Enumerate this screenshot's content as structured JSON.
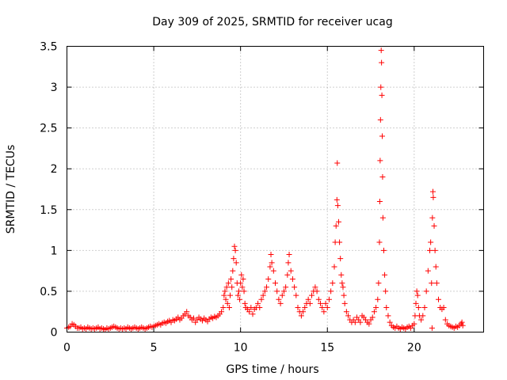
{
  "chart_data": {
    "type": "scatter",
    "title": "Day 309 of 2025, SRMTID for receiver ucag",
    "xlabel": "GPS time / hours",
    "ylabel": "SRMTID / TECUs",
    "xlim": [
      0,
      24
    ],
    "ylim": [
      0,
      3.5
    ],
    "grid": true,
    "marker": "plus",
    "x_ticks": [
      0,
      5,
      10,
      15,
      20
    ],
    "x_tick_labels": [
      "0",
      "5",
      "10",
      "15",
      "20"
    ],
    "y_ticks": [
      0,
      0.5,
      1,
      1.5,
      2,
      2.5,
      3,
      3.5
    ],
    "y_tick_labels": [
      "0",
      "0.5",
      "1",
      "1.5",
      "2",
      "2.5",
      "3",
      "3.5"
    ],
    "series": [
      {
        "name": "SRMTID",
        "color": "#ff0000",
        "points": [
          [
            0.0,
            0.05
          ],
          [
            0.1,
            0.06
          ],
          [
            0.2,
            0.07
          ],
          [
            0.3,
            0.1
          ],
          [
            0.4,
            0.09
          ],
          [
            0.5,
            0.07
          ],
          [
            0.6,
            0.05
          ],
          [
            0.7,
            0.05
          ],
          [
            0.8,
            0.06
          ],
          [
            0.9,
            0.04
          ],
          [
            1.0,
            0.05
          ],
          [
            1.1,
            0.04
          ],
          [
            1.2,
            0.06
          ],
          [
            1.3,
            0.05
          ],
          [
            1.4,
            0.04
          ],
          [
            1.5,
            0.05
          ],
          [
            1.6,
            0.04
          ],
          [
            1.7,
            0.05
          ],
          [
            1.8,
            0.06
          ],
          [
            1.9,
            0.04
          ],
          [
            2.0,
            0.05
          ],
          [
            2.1,
            0.04
          ],
          [
            2.2,
            0.03
          ],
          [
            2.3,
            0.05
          ],
          [
            2.4,
            0.04
          ],
          [
            2.5,
            0.05
          ],
          [
            2.6,
            0.06
          ],
          [
            2.7,
            0.07
          ],
          [
            2.8,
            0.06
          ],
          [
            2.9,
            0.05
          ],
          [
            3.0,
            0.04
          ],
          [
            3.1,
            0.05
          ],
          [
            3.2,
            0.04
          ],
          [
            3.3,
            0.05
          ],
          [
            3.4,
            0.04
          ],
          [
            3.5,
            0.06
          ],
          [
            3.6,
            0.05
          ],
          [
            3.7,
            0.04
          ],
          [
            3.8,
            0.05
          ],
          [
            3.9,
            0.06
          ],
          [
            4.0,
            0.05
          ],
          [
            4.1,
            0.04
          ],
          [
            4.2,
            0.05
          ],
          [
            4.3,
            0.06
          ],
          [
            4.4,
            0.05
          ],
          [
            4.5,
            0.04
          ],
          [
            4.6,
            0.05
          ],
          [
            4.7,
            0.06
          ],
          [
            4.8,
            0.07
          ],
          [
            4.9,
            0.06
          ],
          [
            5.0,
            0.07
          ],
          [
            5.1,
            0.08
          ],
          [
            5.2,
            0.09
          ],
          [
            5.3,
            0.1
          ],
          [
            5.4,
            0.09
          ],
          [
            5.5,
            0.11
          ],
          [
            5.6,
            0.12
          ],
          [
            5.7,
            0.11
          ],
          [
            5.8,
            0.13
          ],
          [
            5.9,
            0.14
          ],
          [
            6.0,
            0.12
          ],
          [
            6.1,
            0.15
          ],
          [
            6.2,
            0.14
          ],
          [
            6.3,
            0.16
          ],
          [
            6.4,
            0.18
          ],
          [
            6.5,
            0.15
          ],
          [
            6.6,
            0.17
          ],
          [
            6.7,
            0.2
          ],
          [
            6.8,
            0.22
          ],
          [
            6.9,
            0.25
          ],
          [
            7.0,
            0.2
          ],
          [
            7.1,
            0.18
          ],
          [
            7.2,
            0.15
          ],
          [
            7.3,
            0.17
          ],
          [
            7.4,
            0.12
          ],
          [
            7.5,
            0.15
          ],
          [
            7.6,
            0.18
          ],
          [
            7.7,
            0.16
          ],
          [
            7.8,
            0.14
          ],
          [
            7.9,
            0.17
          ],
          [
            8.0,
            0.15
          ],
          [
            8.1,
            0.13
          ],
          [
            8.2,
            0.16
          ],
          [
            8.3,
            0.18
          ],
          [
            8.4,
            0.17
          ],
          [
            8.5,
            0.19
          ],
          [
            8.6,
            0.18
          ],
          [
            8.7,
            0.2
          ],
          [
            8.8,
            0.22
          ],
          [
            8.9,
            0.25
          ],
          [
            9.0,
            0.3
          ],
          [
            9.05,
            0.45
          ],
          [
            9.1,
            0.5
          ],
          [
            9.15,
            0.4
          ],
          [
            9.2,
            0.55
          ],
          [
            9.25,
            0.35
          ],
          [
            9.3,
            0.6
          ],
          [
            9.35,
            0.3
          ],
          [
            9.4,
            0.45
          ],
          [
            9.45,
            0.65
          ],
          [
            9.5,
            0.55
          ],
          [
            9.55,
            0.75
          ],
          [
            9.6,
            0.9
          ],
          [
            9.65,
            1.05
          ],
          [
            9.7,
            1.0
          ],
          [
            9.75,
            0.85
          ],
          [
            9.8,
            0.6
          ],
          [
            9.85,
            0.45
          ],
          [
            9.9,
            0.5
          ],
          [
            9.95,
            0.4
          ],
          [
            10.0,
            0.6
          ],
          [
            10.05,
            0.7
          ],
          [
            10.1,
            0.55
          ],
          [
            10.15,
            0.65
          ],
          [
            10.2,
            0.5
          ],
          [
            10.25,
            0.35
          ],
          [
            10.3,
            0.3
          ],
          [
            10.4,
            0.28
          ],
          [
            10.5,
            0.25
          ],
          [
            10.6,
            0.3
          ],
          [
            10.7,
            0.22
          ],
          [
            10.8,
            0.28
          ],
          [
            10.9,
            0.3
          ],
          [
            11.0,
            0.35
          ],
          [
            11.1,
            0.3
          ],
          [
            11.2,
            0.4
          ],
          [
            11.3,
            0.45
          ],
          [
            11.4,
            0.5
          ],
          [
            11.5,
            0.55
          ],
          [
            11.6,
            0.65
          ],
          [
            11.7,
            0.8
          ],
          [
            11.75,
            0.95
          ],
          [
            11.8,
            0.85
          ],
          [
            11.9,
            0.75
          ],
          [
            12.0,
            0.6
          ],
          [
            12.1,
            0.5
          ],
          [
            12.2,
            0.4
          ],
          [
            12.3,
            0.35
          ],
          [
            12.4,
            0.45
          ],
          [
            12.5,
            0.5
          ],
          [
            12.6,
            0.55
          ],
          [
            12.7,
            0.7
          ],
          [
            12.75,
            0.85
          ],
          [
            12.8,
            0.95
          ],
          [
            12.9,
            0.75
          ],
          [
            13.0,
            0.65
          ],
          [
            13.1,
            0.55
          ],
          [
            13.2,
            0.45
          ],
          [
            13.3,
            0.3
          ],
          [
            13.4,
            0.25
          ],
          [
            13.5,
            0.2
          ],
          [
            13.6,
            0.25
          ],
          [
            13.7,
            0.3
          ],
          [
            13.8,
            0.35
          ],
          [
            13.9,
            0.4
          ],
          [
            14.0,
            0.35
          ],
          [
            14.1,
            0.45
          ],
          [
            14.2,
            0.5
          ],
          [
            14.3,
            0.55
          ],
          [
            14.4,
            0.5
          ],
          [
            14.5,
            0.4
          ],
          [
            14.6,
            0.35
          ],
          [
            14.7,
            0.3
          ],
          [
            14.8,
            0.25
          ],
          [
            14.9,
            0.35
          ],
          [
            15.0,
            0.3
          ],
          [
            15.1,
            0.4
          ],
          [
            15.2,
            0.5
          ],
          [
            15.3,
            0.6
          ],
          [
            15.4,
            0.8
          ],
          [
            15.45,
            1.1
          ],
          [
            15.5,
            1.3
          ],
          [
            15.55,
            1.62
          ],
          [
            15.57,
            2.07
          ],
          [
            15.6,
            1.55
          ],
          [
            15.65,
            1.35
          ],
          [
            15.7,
            1.1
          ],
          [
            15.75,
            0.9
          ],
          [
            15.8,
            0.7
          ],
          [
            15.85,
            0.6
          ],
          [
            15.9,
            0.55
          ],
          [
            15.95,
            0.45
          ],
          [
            16.0,
            0.35
          ],
          [
            16.1,
            0.25
          ],
          [
            16.2,
            0.2
          ],
          [
            16.3,
            0.15
          ],
          [
            16.4,
            0.12
          ],
          [
            16.5,
            0.15
          ],
          [
            16.6,
            0.12
          ],
          [
            16.7,
            0.18
          ],
          [
            16.8,
            0.15
          ],
          [
            16.9,
            0.12
          ],
          [
            17.0,
            0.2
          ],
          [
            17.1,
            0.18
          ],
          [
            17.2,
            0.15
          ],
          [
            17.3,
            0.12
          ],
          [
            17.4,
            0.1
          ],
          [
            17.5,
            0.15
          ],
          [
            17.6,
            0.18
          ],
          [
            17.7,
            0.25
          ],
          [
            17.8,
            0.3
          ],
          [
            17.9,
            0.4
          ],
          [
            17.95,
            0.6
          ],
          [
            18.0,
            1.1
          ],
          [
            18.02,
            1.6
          ],
          [
            18.04,
            2.1
          ],
          [
            18.06,
            2.6
          ],
          [
            18.08,
            3.0
          ],
          [
            18.1,
            3.45
          ],
          [
            18.12,
            3.3
          ],
          [
            18.14,
            2.9
          ],
          [
            18.16,
            2.4
          ],
          [
            18.18,
            1.9
          ],
          [
            18.2,
            1.4
          ],
          [
            18.25,
            1.0
          ],
          [
            18.3,
            0.7
          ],
          [
            18.35,
            0.5
          ],
          [
            18.4,
            0.3
          ],
          [
            18.5,
            0.2
          ],
          [
            18.6,
            0.12
          ],
          [
            18.7,
            0.08
          ],
          [
            18.8,
            0.06
          ],
          [
            18.9,
            0.05
          ],
          [
            19.0,
            0.07
          ],
          [
            19.1,
            0.05
          ],
          [
            19.2,
            0.04
          ],
          [
            19.3,
            0.06
          ],
          [
            19.4,
            0.05
          ],
          [
            19.5,
            0.04
          ],
          [
            19.6,
            0.06
          ],
          [
            19.7,
            0.07
          ],
          [
            19.8,
            0.05
          ],
          [
            19.9,
            0.08
          ],
          [
            20.0,
            0.1
          ],
          [
            20.05,
            0.2
          ],
          [
            20.1,
            0.35
          ],
          [
            20.15,
            0.5
          ],
          [
            20.2,
            0.45
          ],
          [
            20.25,
            0.3
          ],
          [
            20.3,
            0.2
          ],
          [
            20.4,
            0.15
          ],
          [
            20.5,
            0.2
          ],
          [
            20.6,
            0.3
          ],
          [
            20.7,
            0.5
          ],
          [
            20.8,
            0.75
          ],
          [
            20.9,
            1.0
          ],
          [
            20.95,
            1.1
          ],
          [
            21.0,
            0.6
          ],
          [
            21.03,
            0.05
          ],
          [
            21.05,
            1.4
          ],
          [
            21.08,
            1.72
          ],
          [
            21.1,
            1.65
          ],
          [
            21.15,
            1.3
          ],
          [
            21.2,
            1.0
          ],
          [
            21.25,
            0.8
          ],
          [
            21.3,
            0.6
          ],
          [
            21.4,
            0.4
          ],
          [
            21.5,
            0.3
          ],
          [
            21.6,
            0.28
          ],
          [
            21.7,
            0.3
          ],
          [
            21.8,
            0.15
          ],
          [
            21.9,
            0.1
          ],
          [
            22.0,
            0.08
          ],
          [
            22.1,
            0.07
          ],
          [
            22.2,
            0.06
          ],
          [
            22.3,
            0.05
          ],
          [
            22.4,
            0.07
          ],
          [
            22.5,
            0.06
          ],
          [
            22.6,
            0.08
          ],
          [
            22.7,
            0.1
          ],
          [
            22.75,
            0.12
          ],
          [
            22.8,
            0.08
          ]
        ]
      }
    ]
  }
}
